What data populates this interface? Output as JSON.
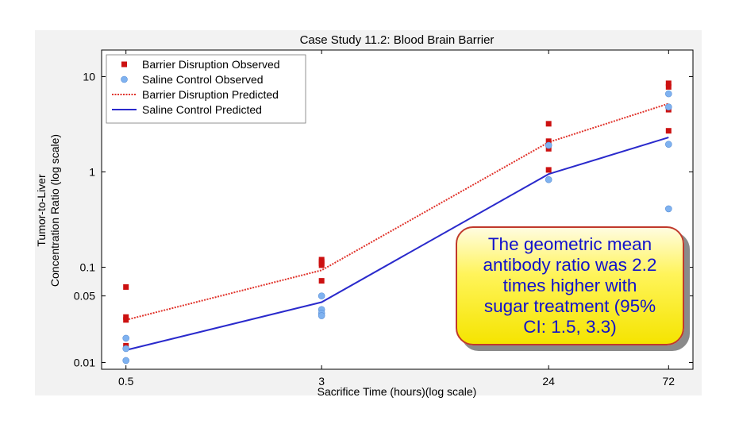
{
  "chart_data": {
    "type": "scatter",
    "title": "Case Study 11.2: Blood Brain Barrier",
    "xlabel": "Sacrifice Time (hours)(log scale)",
    "ylabel_lines": [
      "Tumor-to-Liver",
      "Concentration Ratio (log scale)"
    ],
    "xscale": "log",
    "yscale": "log",
    "xlim": [
      0.4,
      90
    ],
    "ylim": [
      0.0085,
      19
    ],
    "x_ticks": [
      0.5,
      3,
      24,
      72
    ],
    "x_tick_labels": [
      "0.5",
      "3",
      "24",
      "72"
    ],
    "y_ticks": [
      0.01,
      0.05,
      0.1,
      1,
      10
    ],
    "y_tick_labels": [
      "0.01",
      "0.05",
      "0.1",
      "1",
      "10"
    ],
    "grid": false,
    "legend_position": "top-left",
    "series": [
      {
        "name": "Barrier Disruption Observed",
        "kind": "markers",
        "marker": "square",
        "color": "#cc1111",
        "points": [
          [
            0.5,
            0.062
          ],
          [
            0.5,
            0.03
          ],
          [
            0.5,
            0.028
          ],
          [
            0.5,
            0.015
          ],
          [
            3,
            0.12
          ],
          [
            3,
            0.115
          ],
          [
            3,
            0.11
          ],
          [
            3,
            0.105
          ],
          [
            3,
            0.072
          ],
          [
            24,
            3.2
          ],
          [
            24,
            2.1
          ],
          [
            24,
            1.75
          ],
          [
            24,
            1.05
          ],
          [
            72,
            8.5
          ],
          [
            72,
            7.8
          ],
          [
            72,
            4.5
          ],
          [
            72,
            2.7
          ]
        ]
      },
      {
        "name": "Saline Control Observed",
        "kind": "markers",
        "marker": "circle",
        "color": "#7fb2f0",
        "points": [
          [
            0.5,
            0.018
          ],
          [
            0.5,
            0.014
          ],
          [
            0.5,
            0.0105
          ],
          [
            3,
            0.05
          ],
          [
            3,
            0.036
          ],
          [
            3,
            0.033
          ],
          [
            3,
            0.031
          ],
          [
            24,
            1.9
          ],
          [
            24,
            0.83
          ],
          [
            72,
            6.6
          ],
          [
            72,
            4.8
          ],
          [
            72,
            1.95
          ],
          [
            72,
            0.41
          ]
        ]
      },
      {
        "name": "Barrier Disruption Predicted",
        "kind": "line",
        "dash": "dotted",
        "color": "#e0332b",
        "points": [
          [
            0.5,
            0.028
          ],
          [
            3,
            0.093
          ],
          [
            24,
            2.05
          ],
          [
            72,
            5.2
          ]
        ]
      },
      {
        "name": "Saline Control Predicted",
        "kind": "line",
        "dash": "solid",
        "color": "#2a2acc",
        "points": [
          [
            0.5,
            0.0135
          ],
          [
            3,
            0.043
          ],
          [
            24,
            0.95
          ],
          [
            72,
            2.3
          ]
        ]
      }
    ]
  },
  "callout": {
    "text": "The geometric mean\nantibody ratio was 2.2\ntimes higher with\nsugar treatment (95%\nCI: 1.5, 3.3)"
  }
}
